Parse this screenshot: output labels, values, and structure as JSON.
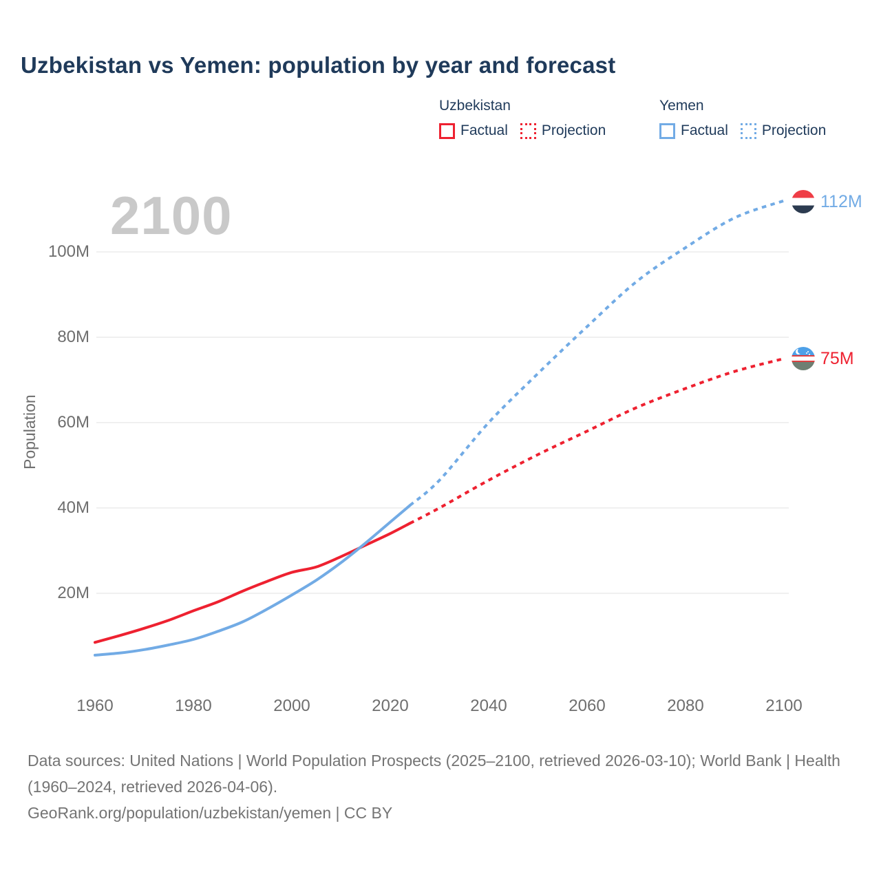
{
  "title": "Uzbekistan vs Yemen: population by year and forecast",
  "watermark": "2100",
  "colors": {
    "uzbekistan": "#ee2130",
    "yemen": "#72abe5",
    "title_text": "#1f3a5a",
    "axis_text": "#6e6e6e",
    "gridline": "#ececec",
    "watermark_text": "#c9c9c9",
    "footer_text": "#747474"
  },
  "legend": {
    "groups": [
      {
        "name": "Uzbekistan",
        "color": "#ee2130",
        "items": [
          {
            "label": "Factual",
            "style": "solid"
          },
          {
            "label": "Projection",
            "style": "dotted"
          }
        ]
      },
      {
        "name": "Yemen",
        "color": "#72abe5",
        "items": [
          {
            "label": "Factual",
            "style": "solid"
          },
          {
            "label": "Projection",
            "style": "dotted"
          }
        ]
      }
    ]
  },
  "icons": {
    "yemen_flag": {
      "stripes": [
        [
          "#ef3d46",
          33.4
        ],
        [
          "#ffffff",
          33.3
        ],
        [
          "#2c3b50",
          33.3
        ]
      ]
    },
    "uzbekistan_flag": {
      "stripes": [
        [
          "#4da0e8",
          36
        ],
        [
          "#de4040",
          5
        ],
        [
          "#ffffff",
          18
        ],
        [
          "#de4040",
          5
        ],
        [
          "#6e7f72",
          36
        ]
      ]
    }
  },
  "chart_data": {
    "type": "line",
    "title": "Uzbekistan vs Yemen: population by year and forecast",
    "xlabel": "",
    "ylabel": "Population",
    "units": "millions of people",
    "xlim": [
      1960,
      2100
    ],
    "ylim": [
      0,
      115
    ],
    "grid": "horizontal-only",
    "legend_position": "top-right",
    "x_ticks": [
      1960,
      1980,
      2000,
      2020,
      2040,
      2060,
      2080,
      2100
    ],
    "y_ticks": [
      {
        "label": "20M",
        "value": 20
      },
      {
        "label": "40M",
        "value": 40
      },
      {
        "label": "60M",
        "value": 60
      },
      {
        "label": "80M",
        "value": 80
      },
      {
        "label": "100M",
        "value": 100
      }
    ],
    "series": [
      {
        "name": "Uzbekistan Factual",
        "country": "Uzbekistan",
        "kind": "factual",
        "color": "#ee2130",
        "dash": "solid",
        "points": [
          [
            1960,
            8.5
          ],
          [
            1965,
            10.1
          ],
          [
            1970,
            11.8
          ],
          [
            1975,
            13.7
          ],
          [
            1980,
            15.9
          ],
          [
            1985,
            18.0
          ],
          [
            1990,
            20.5
          ],
          [
            1995,
            22.8
          ],
          [
            2000,
            24.9
          ],
          [
            2005,
            26.2
          ],
          [
            2010,
            28.6
          ],
          [
            2015,
            31.3
          ],
          [
            2020,
            34.0
          ],
          [
            2024,
            36.4
          ]
        ]
      },
      {
        "name": "Uzbekistan Projection",
        "country": "Uzbekistan",
        "kind": "projection",
        "color": "#ee2130",
        "dash": "dotted",
        "points": [
          [
            2024,
            36.4
          ],
          [
            2030,
            40.0
          ],
          [
            2040,
            46.5
          ],
          [
            2050,
            52.5
          ],
          [
            2060,
            58.0
          ],
          [
            2070,
            63.5
          ],
          [
            2080,
            68.0
          ],
          [
            2090,
            72.0
          ],
          [
            2100,
            75.0
          ]
        ]
      },
      {
        "name": "Yemen Factual",
        "country": "Yemen",
        "kind": "factual",
        "color": "#72abe5",
        "dash": "solid",
        "points": [
          [
            1960,
            5.5
          ],
          [
            1965,
            6.0
          ],
          [
            1970,
            6.8
          ],
          [
            1975,
            7.9
          ],
          [
            1980,
            9.2
          ],
          [
            1985,
            11.1
          ],
          [
            1990,
            13.3
          ],
          [
            1995,
            16.3
          ],
          [
            2000,
            19.6
          ],
          [
            2005,
            23.1
          ],
          [
            2010,
            27.2
          ],
          [
            2015,
            31.8
          ],
          [
            2020,
            36.7
          ],
          [
            2024,
            40.6
          ]
        ]
      },
      {
        "name": "Yemen Projection",
        "country": "Yemen",
        "kind": "projection",
        "color": "#72abe5",
        "dash": "dotted",
        "points": [
          [
            2024,
            40.6
          ],
          [
            2030,
            46.5
          ],
          [
            2040,
            60.0
          ],
          [
            2050,
            71.5
          ],
          [
            2060,
            82.5
          ],
          [
            2070,
            93.0
          ],
          [
            2080,
            101.0
          ],
          [
            2090,
            108.0
          ],
          [
            2100,
            112.0
          ]
        ]
      }
    ],
    "end_labels": [
      {
        "text": "112M",
        "country": "Yemen",
        "year": 2100,
        "value": 112,
        "color": "#72abe5"
      },
      {
        "text": "75M",
        "country": "Uzbekistan",
        "year": 2100,
        "value": 75,
        "color": "#ee2130"
      }
    ],
    "watermark": "2100"
  },
  "footer": {
    "sources": "Data sources: United Nations | World Population Prospects (2025–2100, retrieved 2026-03-10); World Bank | Health (1960–2024, retrieved 2026-04-06).",
    "attribution": "GeoRank.org/population/uzbekistan/yemen | CC BY"
  }
}
